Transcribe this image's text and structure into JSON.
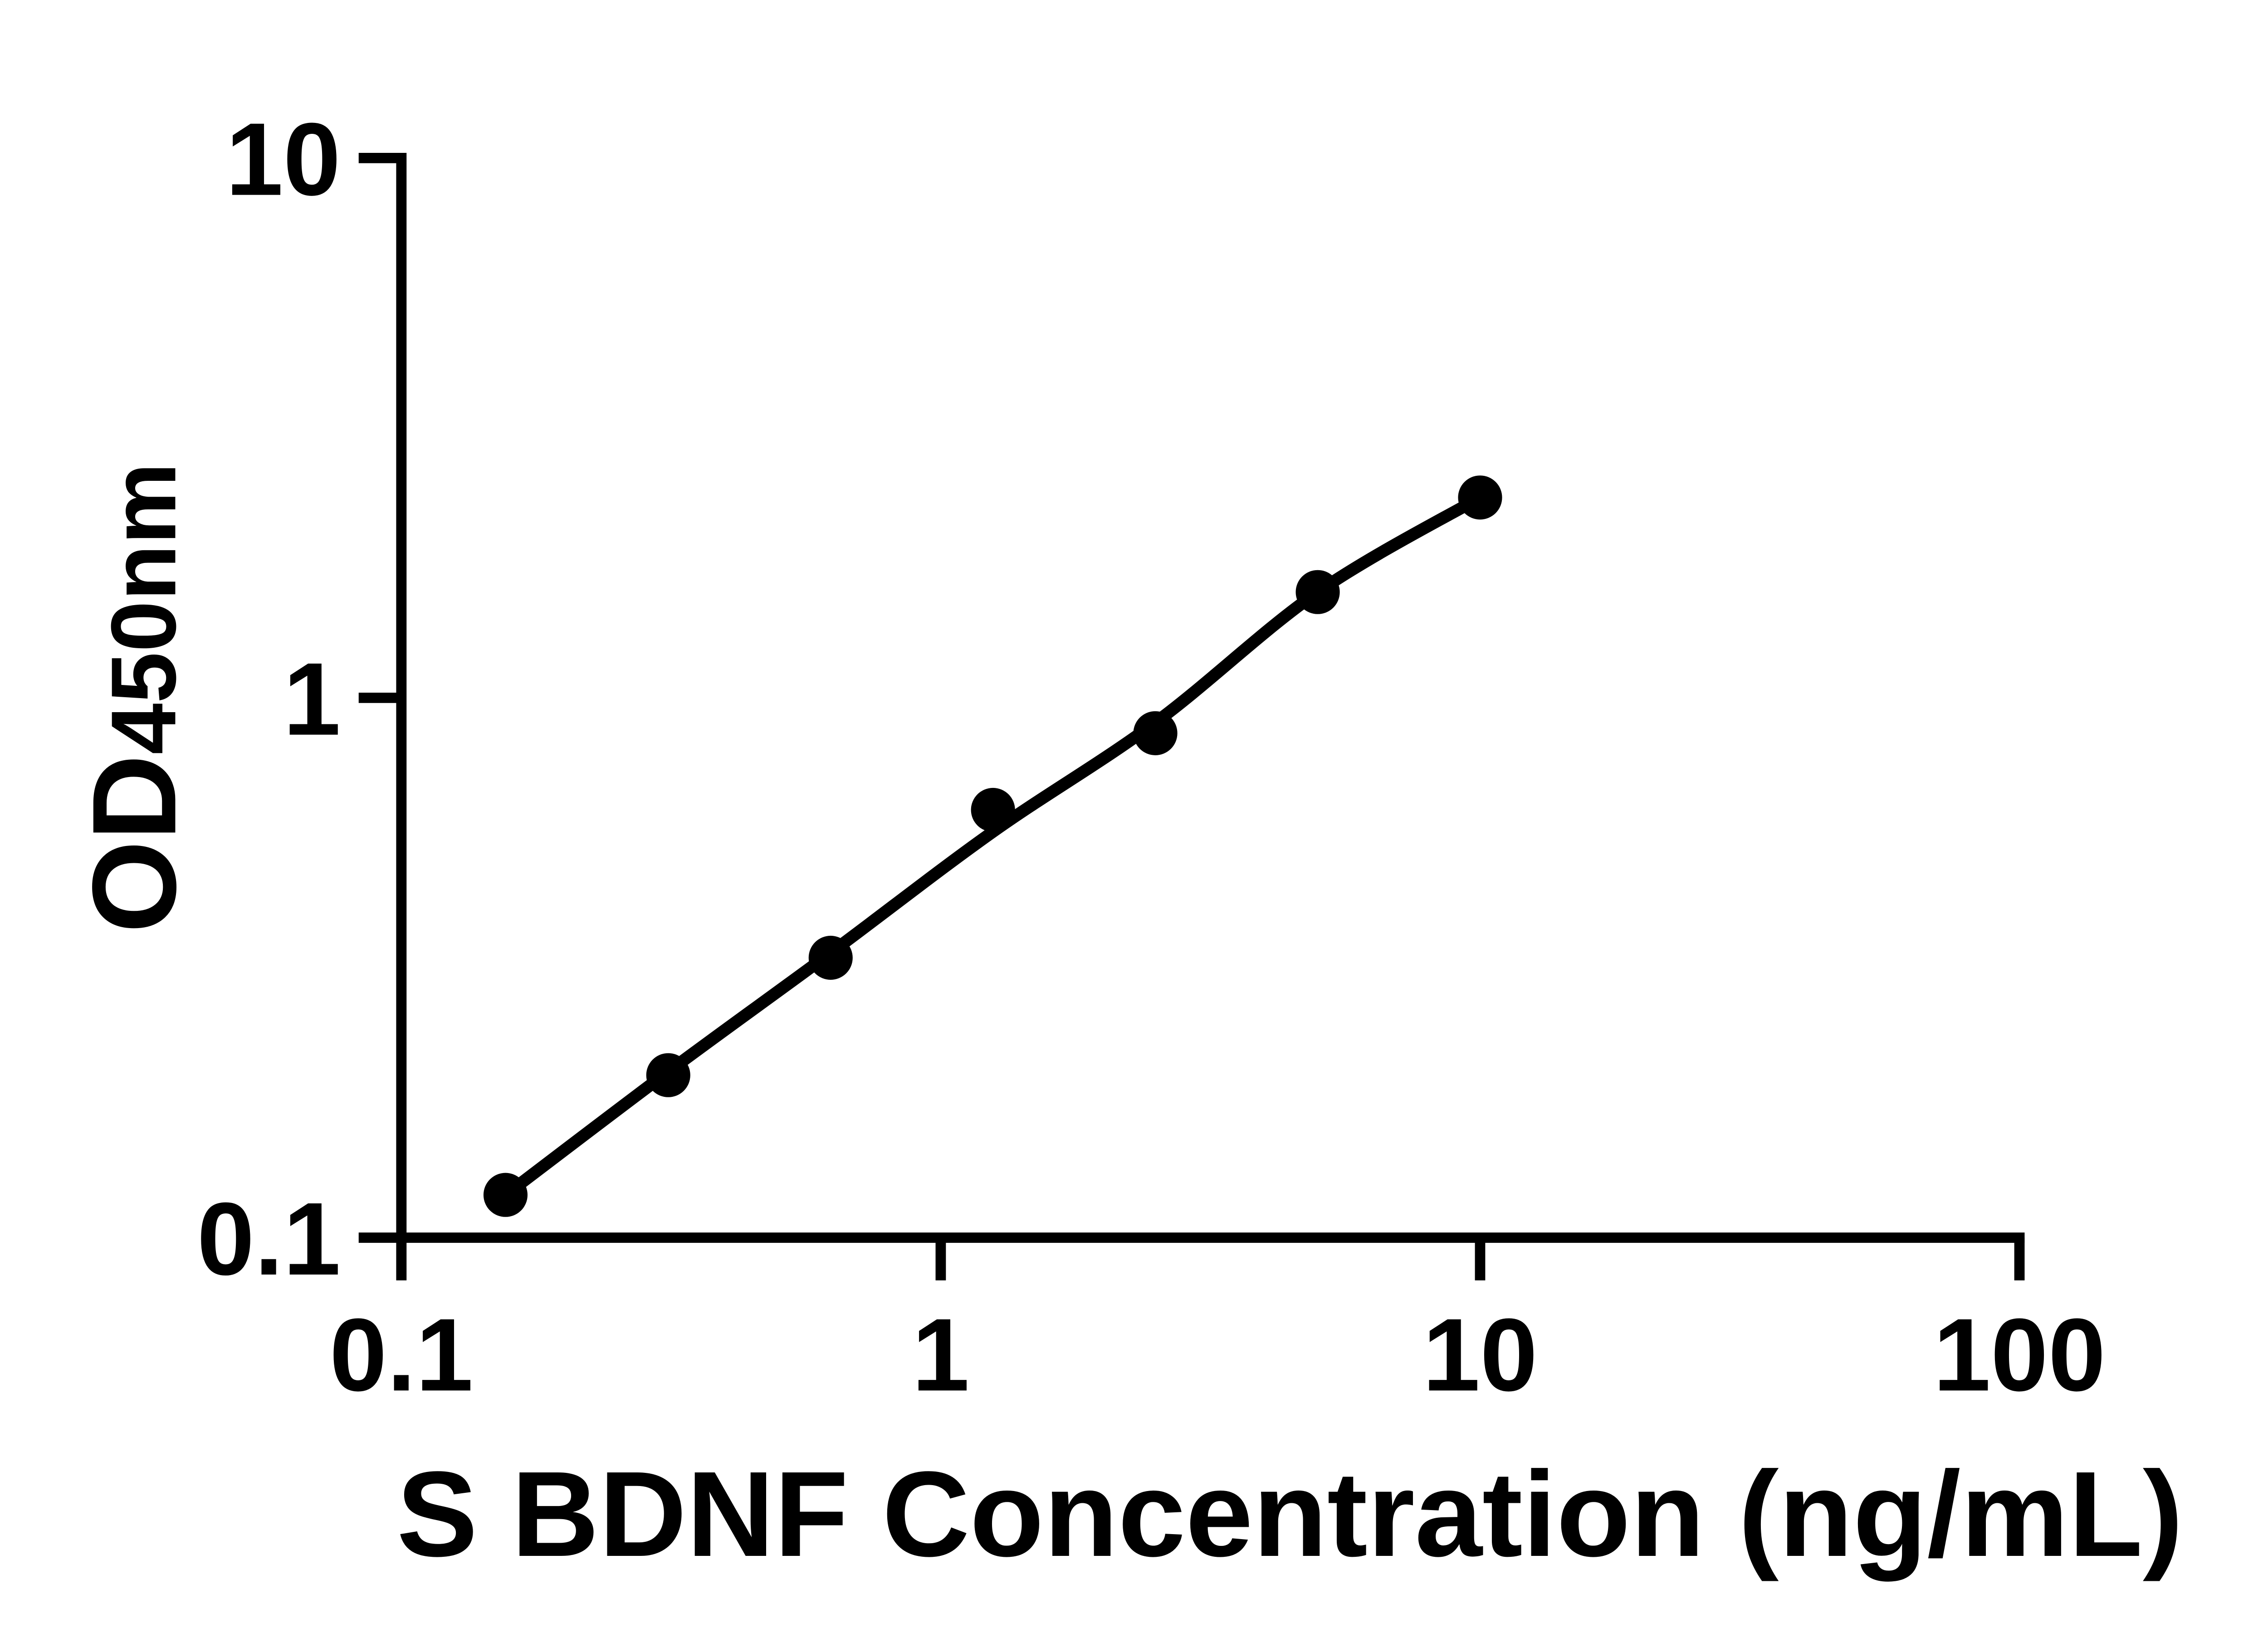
{
  "figure": {
    "background": "#ffffff",
    "foreground": "#000000"
  },
  "chart_data": {
    "type": "scatter",
    "title": "",
    "xlabel": "S BDNF Concentration (ng/mL)",
    "ylabel_main": "OD",
    "ylabel_sub": "450nm",
    "x_scale": "log",
    "y_scale": "log",
    "xlim": [
      0.1,
      100
    ],
    "ylim": [
      0.1,
      10
    ],
    "grid": false,
    "legend": "none",
    "x_ticks": {
      "values": [
        0.1,
        1,
        10,
        100
      ],
      "labels": [
        "0.1",
        "1",
        "10",
        "100"
      ]
    },
    "y_ticks": {
      "values": [
        0.1,
        1,
        10
      ],
      "labels": [
        "0.1",
        "1",
        "10"
      ]
    },
    "series": [
      {
        "name": "standards",
        "marker": "filled-circle",
        "color": "#000000",
        "x": [
          0.156,
          0.3125,
          0.625,
          1.25,
          2.5,
          5,
          10
        ],
        "y": [
          0.12,
          0.2,
          0.33,
          0.62,
          0.86,
          1.57,
          2.35
        ]
      }
    ],
    "fit_curve": {
      "name": "standard-curve-fit",
      "color": "#000000",
      "x": [
        0.156,
        0.3125,
        0.625,
        1.25,
        2.5,
        5,
        10
      ],
      "y": [
        0.12,
        0.203,
        0.337,
        0.565,
        0.9,
        1.57,
        2.35
      ]
    }
  }
}
